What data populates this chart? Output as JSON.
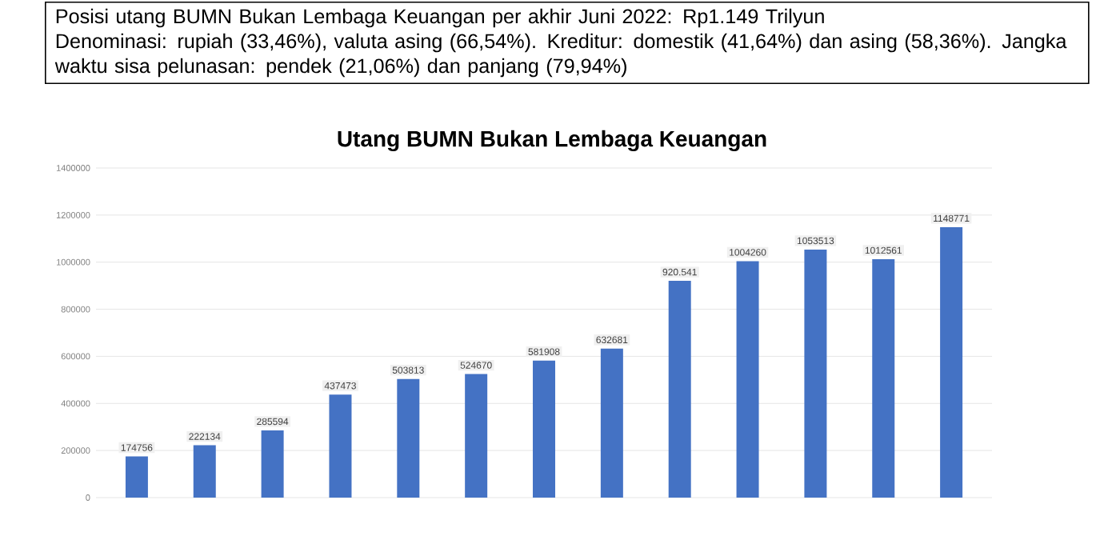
{
  "chart_data": {
    "type": "bar",
    "title": "Utang BUMN Bukan Lembaga Keuangan",
    "annotations": [
      "Posisi utang BUMN Bukan Lembaga Keuangan per akhir Juni 2022: Rp1.149 Trilyun",
      "Denominasi: rupiah (33,46%), valuta asing (66,54%). Kreditur: domestik (41,64%) dan asing (58,36%). Jangka waktu sisa pelunasan: pendek (21,06%) dan panjang (79,94%)"
    ],
    "categories": [
      null,
      null,
      null,
      null,
      null,
      null,
      null,
      null,
      null,
      null,
      null,
      null,
      null
    ],
    "values": [
      174756,
      222134,
      285594,
      437473,
      503813,
      524670,
      581908,
      632681,
      920541,
      1004260,
      1053513,
      1012561,
      1148771
    ],
    "value_labels": [
      "174756",
      "222134",
      "285594",
      "437473",
      "503813",
      "524670",
      "581908",
      "632681",
      "920.541",
      "1004260",
      "1053513",
      "1012561",
      "1148771"
    ],
    "color": "#4472c4",
    "ylim": [
      0,
      1400000
    ],
    "yticks": [
      0,
      200000,
      400000,
      600000,
      800000,
      1000000,
      1200000,
      1400000
    ],
    "grid": "y"
  }
}
